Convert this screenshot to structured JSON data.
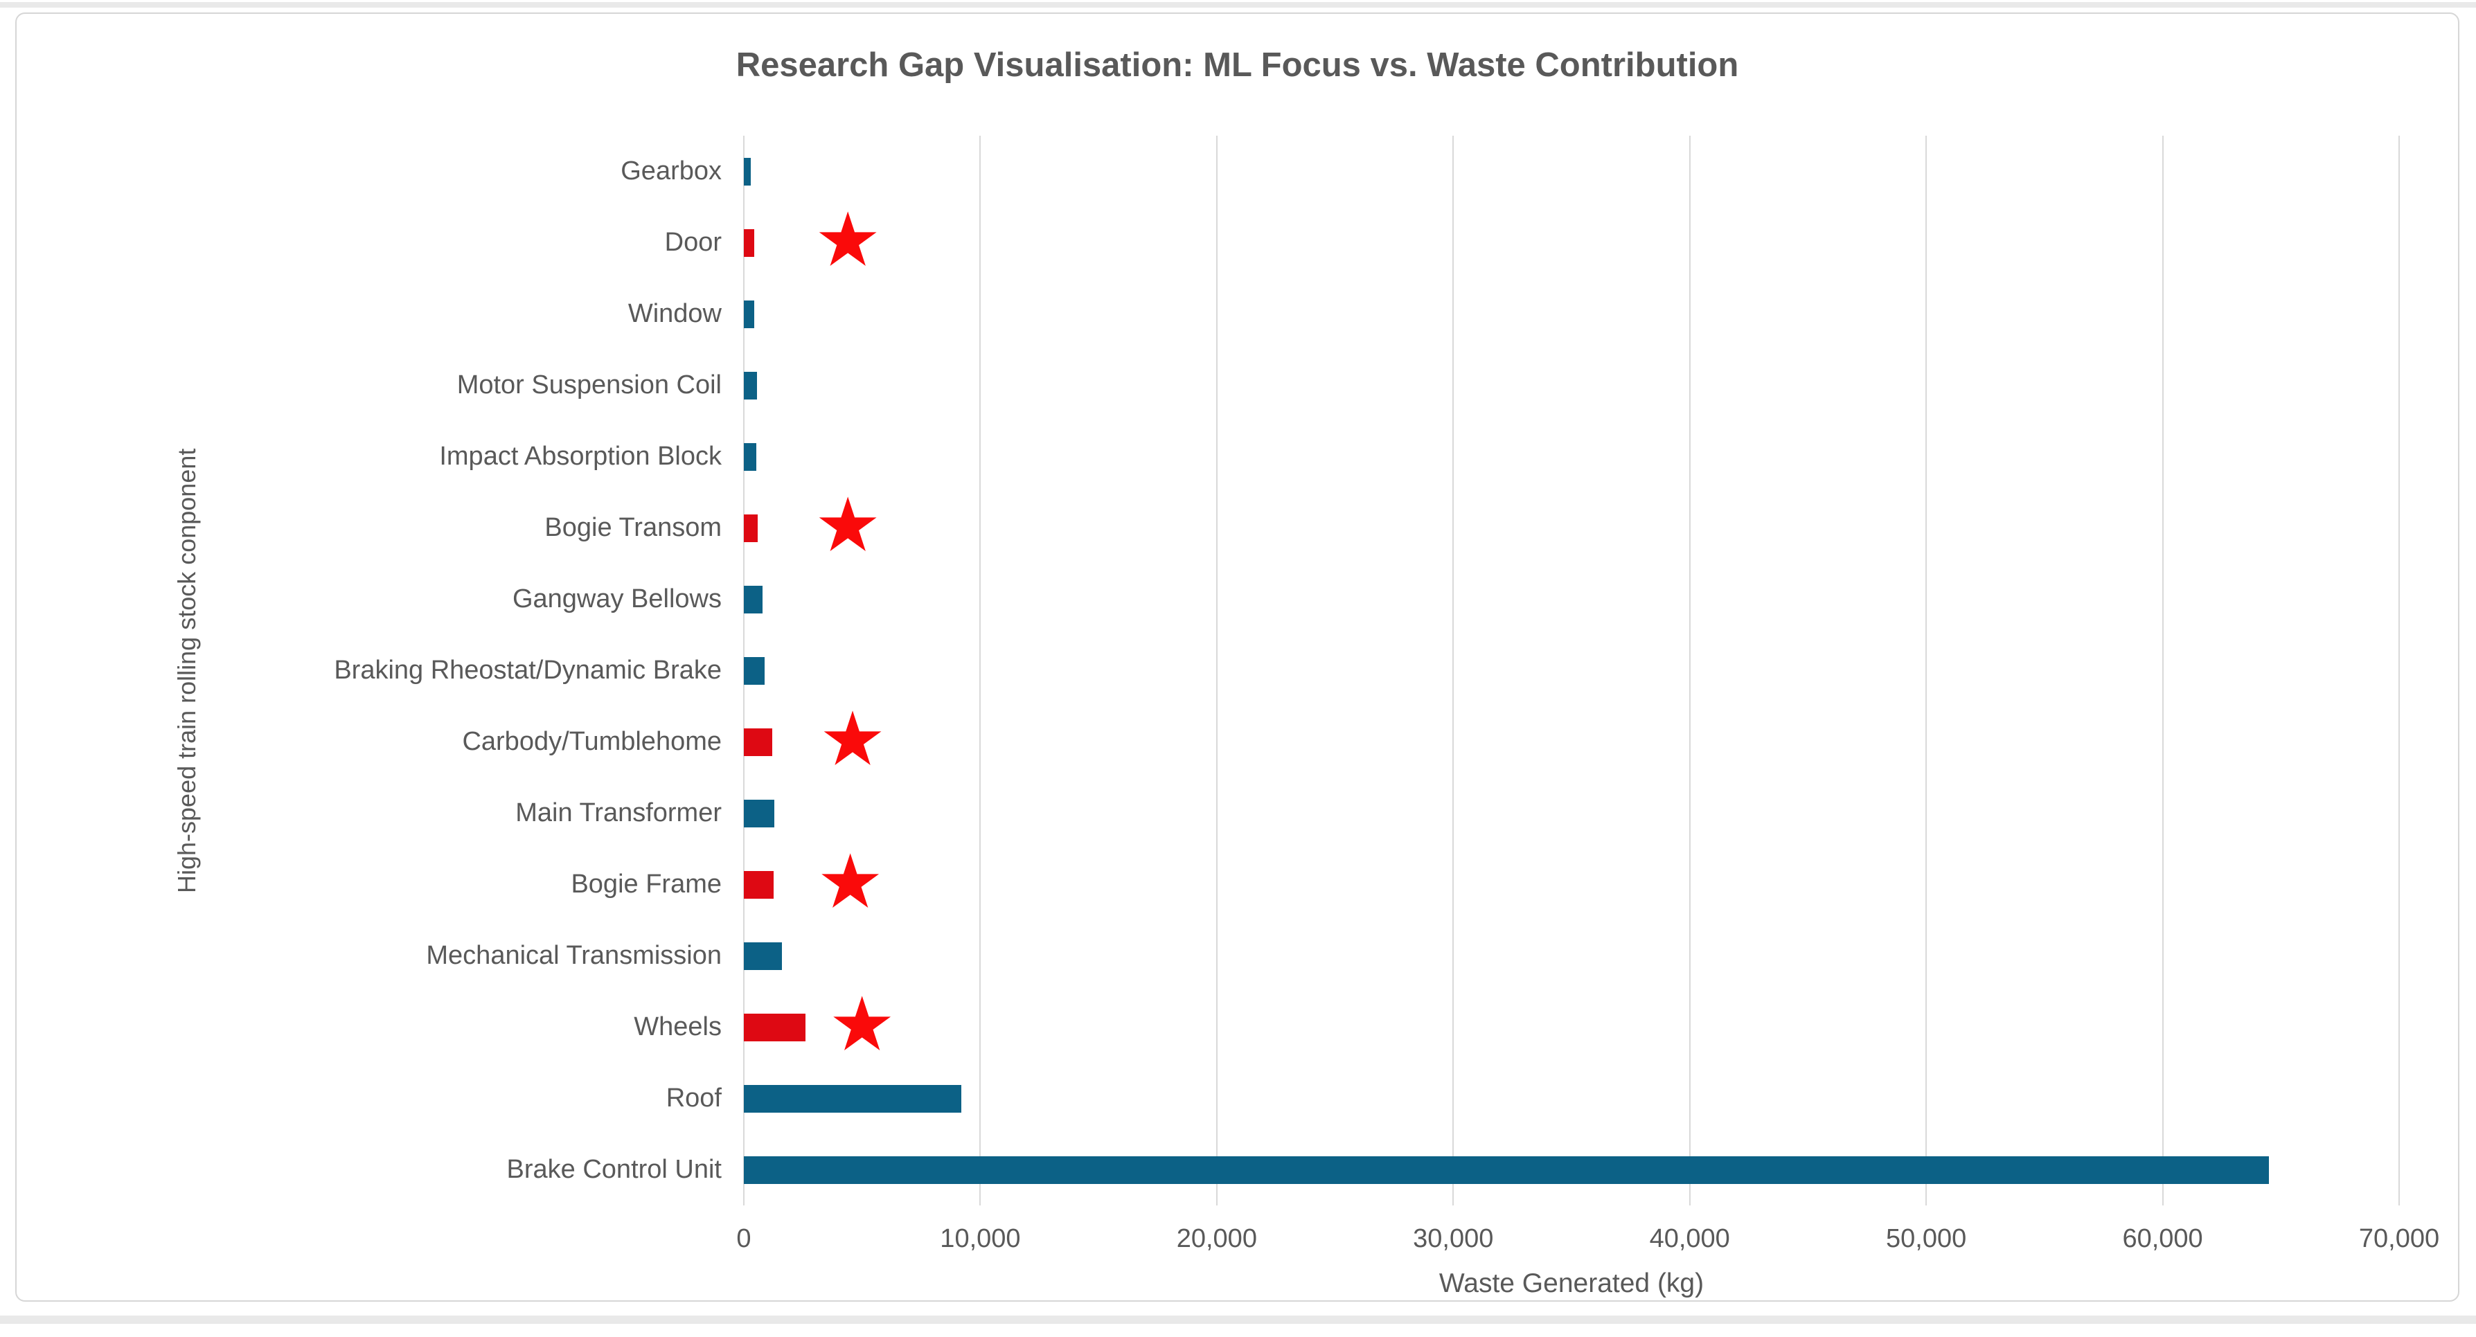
{
  "chart_data": {
    "type": "bar",
    "orientation": "horizontal",
    "title": "Research Gap Visualisation: ML Focus vs. Waste Contribution",
    "xlabel": "Waste Generated (kg)",
    "ylabel": "High-speed train rolling stock conponent",
    "xlim": [
      0,
      70000
    ],
    "grid": "vertical-gridlines-on",
    "legend": "none",
    "xticks": [
      {
        "value": 0,
        "label": "0"
      },
      {
        "value": 10000,
        "label": "10,000"
      },
      {
        "value": 20000,
        "label": "20,000"
      },
      {
        "value": 30000,
        "label": "30,000"
      },
      {
        "value": 40000,
        "label": "40,000"
      },
      {
        "value": 50000,
        "label": "50,000"
      },
      {
        "value": 60000,
        "label": "60,000"
      },
      {
        "value": 70000,
        "label": "70,000"
      }
    ],
    "rows": [
      {
        "label": "Gearbox",
        "value": 300,
        "highlight": false,
        "star_x": null
      },
      {
        "label": "Door",
        "value": 450,
        "highlight": true,
        "star_x": 4400
      },
      {
        "label": "Window",
        "value": 450,
        "highlight": false,
        "star_x": null
      },
      {
        "label": "Motor Suspension Coil",
        "value": 550,
        "highlight": false,
        "star_x": null
      },
      {
        "label": "Impact Absorption Block",
        "value": 520,
        "highlight": false,
        "star_x": null
      },
      {
        "label": "Bogie Transom",
        "value": 600,
        "highlight": true,
        "star_x": 4400
      },
      {
        "label": "Gangway Bellows",
        "value": 800,
        "highlight": false,
        "star_x": null
      },
      {
        "label": "Braking Rheostat/Dynamic Brake",
        "value": 870,
        "highlight": false,
        "star_x": null
      },
      {
        "label": "Carbody/Tumblehome",
        "value": 1200,
        "highlight": true,
        "star_x": 4600
      },
      {
        "label": "Main Transformer",
        "value": 1300,
        "highlight": false,
        "star_x": null
      },
      {
        "label": "Bogie Frame",
        "value": 1250,
        "highlight": true,
        "star_x": 4500
      },
      {
        "label": "Mechanical Transmission",
        "value": 1600,
        "highlight": false,
        "star_x": null
      },
      {
        "label": "Wheels",
        "value": 2600,
        "highlight": true,
        "star_x": 5000
      },
      {
        "label": "Roof",
        "value": 9200,
        "highlight": false,
        "star_x": null
      },
      {
        "label": "Brake Control Unit",
        "value": 64500,
        "highlight": false,
        "star_x": null
      }
    ],
    "colors": {
      "bar_blue": "#0c6186",
      "bar_red": "#de0913",
      "star_red": "#fa0a0a",
      "text": "#595959",
      "gridline": "#d9d9d9"
    },
    "star_glyph": "★"
  }
}
